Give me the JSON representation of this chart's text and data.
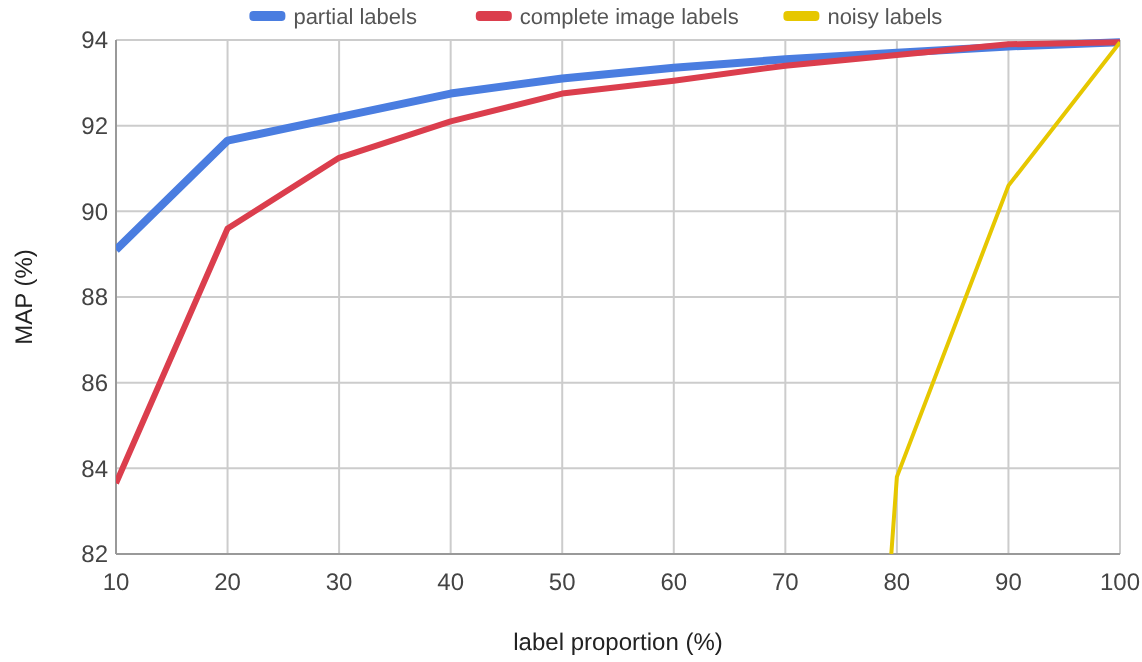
{
  "chart_data": {
    "type": "line",
    "xlabel": "label proportion (%)",
    "ylabel": "MAP (%)",
    "x": [
      10,
      20,
      30,
      40,
      50,
      60,
      70,
      80,
      90,
      100
    ],
    "series": [
      {
        "name": "partial labels",
        "color": "#4a7de0",
        "values": [
          89.1,
          91.65,
          92.2,
          92.75,
          93.1,
          93.35,
          93.55,
          93.7,
          93.85,
          93.95
        ]
      },
      {
        "name": "complete image labels",
        "color": "#db3e4d",
        "values": [
          83.65,
          89.6,
          91.25,
          92.1,
          92.75,
          93.05,
          93.4,
          93.65,
          93.9,
          93.95
        ]
      },
      {
        "name": "noisy labels",
        "color": "#e6c700",
        "x": [
          79.5,
          80,
          90,
          100
        ],
        "values": [
          82,
          83.8,
          90.6,
          93.95
        ]
      }
    ],
    "xlim": [
      10,
      100
    ],
    "xticks": [
      10,
      20,
      30,
      40,
      50,
      60,
      70,
      80,
      90,
      100
    ],
    "ylim": [
      82,
      94
    ],
    "yticks": [
      82,
      84,
      86,
      88,
      90,
      92,
      94
    ],
    "grid": true,
    "legend": "top",
    "marker": "none",
    "line_style": "solid"
  }
}
